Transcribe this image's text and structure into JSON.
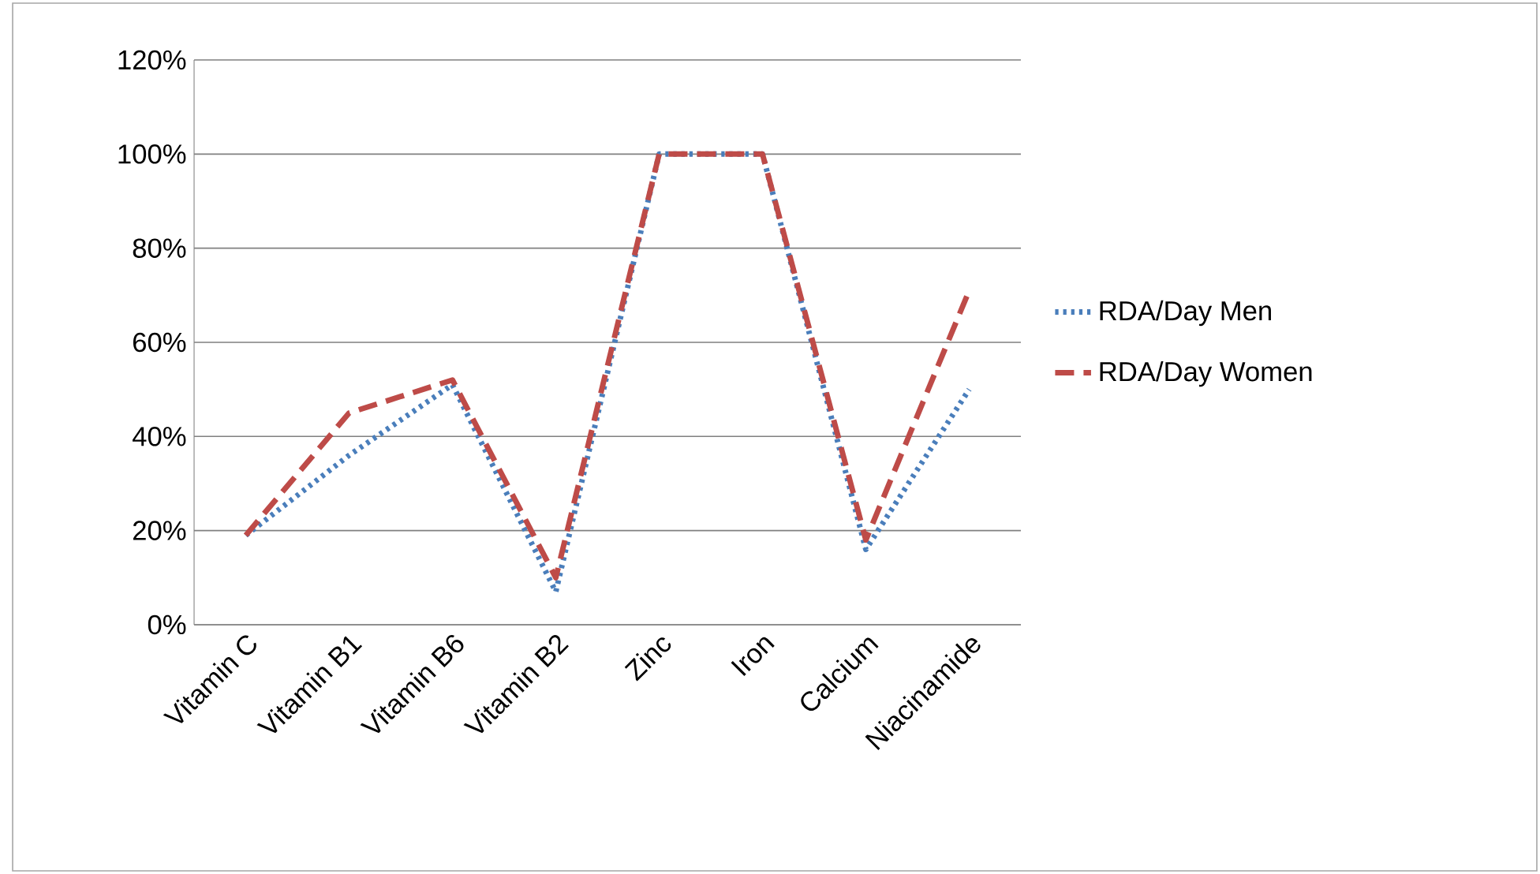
{
  "chart_data": {
    "type": "line",
    "categories": [
      "Vitamin C",
      "Vitamin B1",
      "Vitamin B6",
      "Vitamin B2",
      "Zinc",
      "Iron",
      "Calcium",
      "Niacinamide"
    ],
    "series": [
      {
        "name": "RDA/Day Men",
        "color": "#4a7ebb",
        "line_style": "dotted",
        "values": [
          19,
          36,
          51,
          7,
          100,
          100,
          16,
          50
        ]
      },
      {
        "name": "RDA/Day Women",
        "color": "#be4b48",
        "line_style": "dashed",
        "values": [
          19,
          45,
          52,
          10,
          100,
          100,
          18,
          71
        ]
      }
    ],
    "ylim": [
      0,
      120
    ],
    "yticks": [
      {
        "value": 0,
        "label": "0%"
      },
      {
        "value": 20,
        "label": "20%"
      },
      {
        "value": 40,
        "label": "40%"
      },
      {
        "value": 60,
        "label": "60%"
      },
      {
        "value": 80,
        "label": "80%"
      },
      {
        "value": 100,
        "label": "100%"
      },
      {
        "value": 120,
        "label": "120%"
      }
    ],
    "grid": "y",
    "legend": "right",
    "marker": "none"
  }
}
